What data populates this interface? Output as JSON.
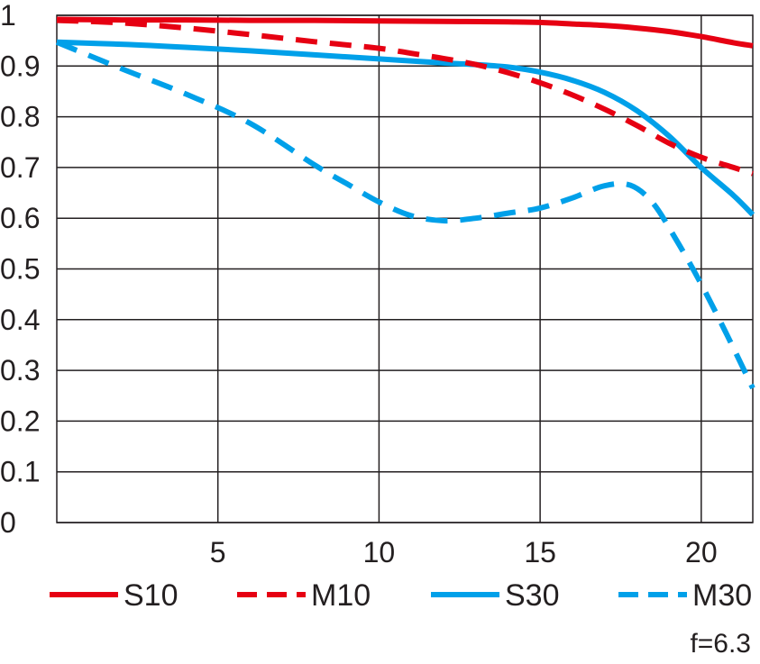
{
  "chart_data": {
    "type": "line",
    "title": "",
    "xlabel": "",
    "ylabel": "",
    "xlim": [
      0,
      21.6
    ],
    "ylim": [
      0,
      1
    ],
    "x_ticks": [
      5,
      10,
      15,
      20
    ],
    "x_tick_labels": [
      "5",
      "10",
      "15",
      "20"
    ],
    "y_ticks": [
      0,
      0.1,
      0.2,
      0.3,
      0.4,
      0.5,
      0.6,
      0.7,
      0.8,
      0.9,
      1
    ],
    "y_tick_labels": [
      "0",
      "0.1",
      "0.2",
      "0.3",
      "0.4",
      "0.5",
      "0.6",
      "0.7",
      "0.8",
      "0.9",
      "1"
    ],
    "grid": true,
    "legend_position": "bottom",
    "annotation": "f=6.3",
    "series": [
      {
        "name": "S10",
        "color": "#e60012",
        "dash": "solid",
        "points": [
          [
            0,
            0.992
          ],
          [
            2,
            0.991
          ],
          [
            4,
            0.991
          ],
          [
            6,
            0.99
          ],
          [
            8,
            0.99
          ],
          [
            10,
            0.989
          ],
          [
            12,
            0.988
          ],
          [
            14,
            0.987
          ],
          [
            15,
            0.986
          ],
          [
            16,
            0.983
          ],
          [
            17,
            0.98
          ],
          [
            18,
            0.975
          ],
          [
            19,
            0.968
          ],
          [
            20,
            0.958
          ],
          [
            21,
            0.946
          ],
          [
            21.6,
            0.94
          ]
        ]
      },
      {
        "name": "M10",
        "color": "#e60012",
        "dash": "dashed",
        "points": [
          [
            0,
            0.99
          ],
          [
            2,
            0.985
          ],
          [
            4,
            0.975
          ],
          [
            6,
            0.962
          ],
          [
            8,
            0.948
          ],
          [
            10,
            0.935
          ],
          [
            11,
            0.925
          ],
          [
            12,
            0.915
          ],
          [
            13,
            0.903
          ],
          [
            14,
            0.887
          ],
          [
            15,
            0.867
          ],
          [
            16,
            0.843
          ],
          [
            17,
            0.815
          ],
          [
            18,
            0.783
          ],
          [
            19,
            0.748
          ],
          [
            20,
            0.72
          ],
          [
            21,
            0.7
          ],
          [
            21.6,
            0.688
          ]
        ]
      },
      {
        "name": "S30",
        "color": "#00a0e9",
        "dash": "solid",
        "points": [
          [
            0,
            0.947
          ],
          [
            2,
            0.943
          ],
          [
            4,
            0.937
          ],
          [
            6,
            0.93
          ],
          [
            8,
            0.922
          ],
          [
            10,
            0.914
          ],
          [
            12,
            0.906
          ],
          [
            13,
            0.903
          ],
          [
            14,
            0.898
          ],
          [
            15,
            0.888
          ],
          [
            16,
            0.872
          ],
          [
            17,
            0.848
          ],
          [
            18,
            0.812
          ],
          [
            19,
            0.762
          ],
          [
            20,
            0.7
          ],
          [
            21,
            0.645
          ],
          [
            21.6,
            0.607
          ]
        ]
      },
      {
        "name": "M30",
        "color": "#00a0e9",
        "dash": "dashed",
        "points": [
          [
            0,
            0.947
          ],
          [
            2,
            0.895
          ],
          [
            4,
            0.845
          ],
          [
            6,
            0.787
          ],
          [
            8,
            0.705
          ],
          [
            9,
            0.668
          ],
          [
            10,
            0.632
          ],
          [
            11,
            0.605
          ],
          [
            12,
            0.595
          ],
          [
            13,
            0.6
          ],
          [
            14,
            0.61
          ],
          [
            15,
            0.62
          ],
          [
            16,
            0.64
          ],
          [
            17,
            0.664
          ],
          [
            17.8,
            0.665
          ],
          [
            18.5,
            0.63
          ],
          [
            19.2,
            0.56
          ],
          [
            20,
            0.47
          ],
          [
            20.8,
            0.37
          ],
          [
            21.6,
            0.265
          ]
        ]
      }
    ]
  }
}
